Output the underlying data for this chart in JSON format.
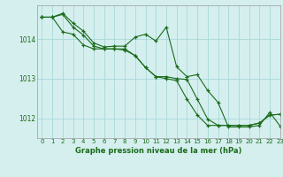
{
  "title": "Graphe pression niveau de la mer (hPa)",
  "bg_color": "#d5efef",
  "grid_color": "#a8d8d8",
  "line_color": "#1a6b1a",
  "marker_color": "#1a6b1a",
  "ylabel_ticks": [
    1012,
    1013,
    1014
  ],
  "xlim": [
    -0.5,
    23
  ],
  "ylim": [
    1011.5,
    1014.85
  ],
  "series1": [
    1014.55,
    1014.55,
    1014.65,
    1014.4,
    1014.2,
    1013.9,
    1013.8,
    1013.82,
    1013.82,
    1014.05,
    1014.12,
    1013.95,
    1014.3,
    1013.3,
    1013.05,
    1013.1,
    1012.7,
    1012.4,
    1011.78,
    1011.78,
    1011.78,
    1011.82,
    1012.15,
    1011.8
  ],
  "series2": [
    1014.55,
    1014.55,
    1014.62,
    1014.3,
    1014.1,
    1013.82,
    1013.75,
    1013.75,
    1013.72,
    1013.58,
    1013.28,
    1013.05,
    1013.05,
    1013.0,
    1012.98,
    1012.48,
    1011.98,
    1011.82,
    1011.82,
    1011.82,
    1011.82,
    1011.88,
    1012.08,
    1012.1
  ],
  "series3": [
    1014.55,
    1014.55,
    1014.18,
    1014.12,
    1013.85,
    1013.75,
    1013.75,
    1013.75,
    1013.75,
    1013.58,
    1013.28,
    1013.05,
    1013.0,
    1012.95,
    1012.48,
    1012.08,
    1011.82,
    1011.82,
    1011.82,
    1011.82,
    1011.82,
    1011.88,
    1012.08,
    1012.1
  ]
}
